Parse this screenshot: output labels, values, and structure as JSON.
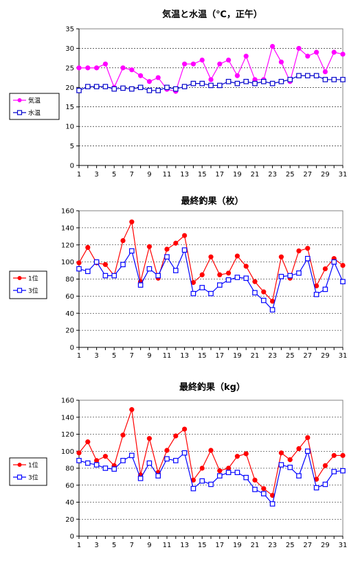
{
  "chart_data": [
    {
      "type": "line",
      "title": "気温と水温（℃，正午）",
      "x": [
        1,
        2,
        3,
        4,
        5,
        6,
        7,
        8,
        9,
        10,
        11,
        12,
        13,
        14,
        15,
        16,
        17,
        18,
        19,
        20,
        21,
        22,
        23,
        24,
        25,
        26,
        27,
        28,
        29,
        30,
        31
      ],
      "x_tick_labels": [
        "1",
        "3",
        "5",
        "7",
        "9",
        "11",
        "13",
        "15",
        "17",
        "19",
        "21",
        "23",
        "25",
        "27",
        "29",
        "31"
      ],
      "ylim": [
        0,
        35
      ],
      "y_ticks": [
        0,
        5,
        10,
        15,
        20,
        25,
        30,
        35
      ],
      "grid": true,
      "legend_position": "left",
      "series": [
        {
          "name": "気温",
          "color": "#ff00ff",
          "marker": "filled-circle",
          "values": [
            25,
            25,
            25,
            26,
            20,
            25,
            24.5,
            23,
            21.5,
            22.5,
            19.5,
            19,
            26,
            26,
            27,
            22,
            26,
            27,
            23,
            28,
            22,
            22,
            30.5,
            26.5,
            21.5,
            30,
            28,
            29,
            24,
            29,
            28.5
          ]
        },
        {
          "name": "水温",
          "color": "#0000cc",
          "marker": "open-square",
          "values": [
            19.2,
            20.2,
            20.2,
            20.2,
            19.6,
            19.8,
            19.6,
            20,
            19.2,
            19.2,
            20,
            19.6,
            20.2,
            21,
            21,
            20.5,
            20.5,
            21.5,
            21,
            21.5,
            21,
            21.5,
            21,
            21.5,
            22,
            23,
            23,
            23,
            22,
            22,
            22
          ]
        }
      ]
    },
    {
      "type": "line",
      "title": "最終釣果（枚）",
      "x": [
        1,
        2,
        3,
        4,
        5,
        6,
        7,
        8,
        9,
        10,
        11,
        12,
        13,
        14,
        15,
        16,
        17,
        18,
        19,
        20,
        21,
        22,
        23,
        24,
        25,
        26,
        27,
        28,
        29,
        30,
        31
      ],
      "x_tick_labels": [
        "1",
        "3",
        "5",
        "7",
        "9",
        "11",
        "13",
        "15",
        "17",
        "19",
        "21",
        "23",
        "25",
        "27",
        "29",
        "31"
      ],
      "ylim": [
        0,
        160
      ],
      "y_ticks": [
        0,
        20,
        40,
        60,
        80,
        100,
        120,
        140,
        160
      ],
      "grid": true,
      "legend_position": "left",
      "series": [
        {
          "name": "1位",
          "color": "#ff0000",
          "marker": "filled-circle",
          "values": [
            99,
            117,
            99,
            97,
            84,
            125,
            147,
            77,
            118,
            81,
            115,
            122,
            131,
            76,
            85,
            106,
            85,
            87,
            107,
            95,
            77,
            65,
            54,
            106,
            81,
            113,
            116,
            72,
            92,
            104,
            96
          ]
        },
        {
          "name": "3位",
          "color": "#0000ff",
          "marker": "open-square",
          "values": [
            92,
            89,
            100,
            84,
            84,
            97,
            113,
            73,
            92,
            84,
            106,
            90,
            114,
            63,
            70,
            63,
            73,
            79,
            82,
            81,
            64,
            55,
            44,
            83,
            84,
            87,
            104,
            62,
            68,
            100,
            77
          ]
        }
      ]
    },
    {
      "type": "line",
      "title": "最終釣果（kg）",
      "x": [
        1,
        2,
        3,
        4,
        5,
        6,
        7,
        8,
        9,
        10,
        11,
        12,
        13,
        14,
        15,
        16,
        17,
        18,
        19,
        20,
        21,
        22,
        23,
        24,
        25,
        26,
        27,
        28,
        29,
        30,
        31
      ],
      "x_tick_labels": [
        "1",
        "3",
        "5",
        "7",
        "9",
        "11",
        "13",
        "15",
        "17",
        "19",
        "21",
        "23",
        "25",
        "27",
        "29",
        "31"
      ],
      "ylim": [
        0,
        160
      ],
      "y_ticks": [
        0,
        20,
        40,
        60,
        80,
        100,
        120,
        140,
        160
      ],
      "grid": true,
      "legend_position": "left",
      "series": [
        {
          "name": "1位",
          "color": "#ff0000",
          "marker": "filled-circle",
          "values": [
            98,
            111,
            89,
            94,
            83,
            119,
            149,
            72,
            115,
            75,
            101,
            118,
            126,
            66,
            80,
            101,
            77,
            80,
            94,
            97,
            66,
            56,
            48,
            98,
            90,
            103,
            116,
            67,
            83,
            95,
            95
          ]
        },
        {
          "name": "3位",
          "color": "#0000ff",
          "marker": "open-square",
          "values": [
            89,
            86,
            84,
            80,
            79,
            89,
            95,
            68,
            86,
            71,
            91,
            89,
            98,
            56,
            65,
            61,
            71,
            75,
            75,
            69,
            55,
            50,
            38,
            84,
            81,
            71,
            100,
            57,
            61,
            76,
            77
          ]
        }
      ]
    }
  ]
}
